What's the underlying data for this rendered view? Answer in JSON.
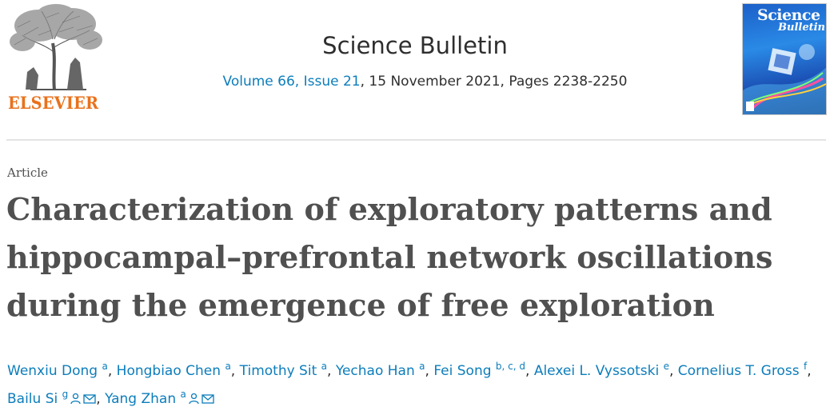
{
  "publisher": {
    "name": "ELSEVIER"
  },
  "journal": {
    "title": "Science Bulletin",
    "volume_link": "Volume 66, Issue 21",
    "issue_details": ", 15 November 2021, Pages 2238-2250"
  },
  "cover": {
    "title_line1": "Science",
    "title_line2": "Bulletin"
  },
  "article": {
    "type": "Article",
    "title_lines": [
      "Characterization of exploratory patterns and",
      "hippocampal–prefrontal network oscillations",
      "during the emergence of free exploration"
    ]
  },
  "authors": [
    {
      "name": "Wenxiu Dong",
      "aff": "a",
      "sep": ", "
    },
    {
      "name": "Hongbiao Chen",
      "aff": "a",
      "sep": ", "
    },
    {
      "name": "Timothy Sit",
      "aff": "a",
      "sep": ", "
    },
    {
      "name": "Yechao Han",
      "aff": "a",
      "sep": ", "
    },
    {
      "name": "Fei Song",
      "aff": "b, c, d",
      "sep": ", "
    },
    {
      "name": "Alexei L. Vyssotski",
      "aff": "e",
      "sep": ", "
    },
    {
      "name": "Cornelius T. Gross",
      "aff": "f",
      "sep": ", "
    },
    {
      "name": "Bailu Si",
      "aff": "g",
      "sep": ", "
    },
    {
      "name": "Yang Zhan",
      "aff": "a",
      "sep": ""
    }
  ],
  "icons": {
    "person": "person-icon",
    "mail": "mail-icon"
  },
  "colors": {
    "link": "#0c7dbb",
    "publisher_orange": "#e9711c",
    "text": "#2e2e2e",
    "title_gray": "#505050"
  }
}
